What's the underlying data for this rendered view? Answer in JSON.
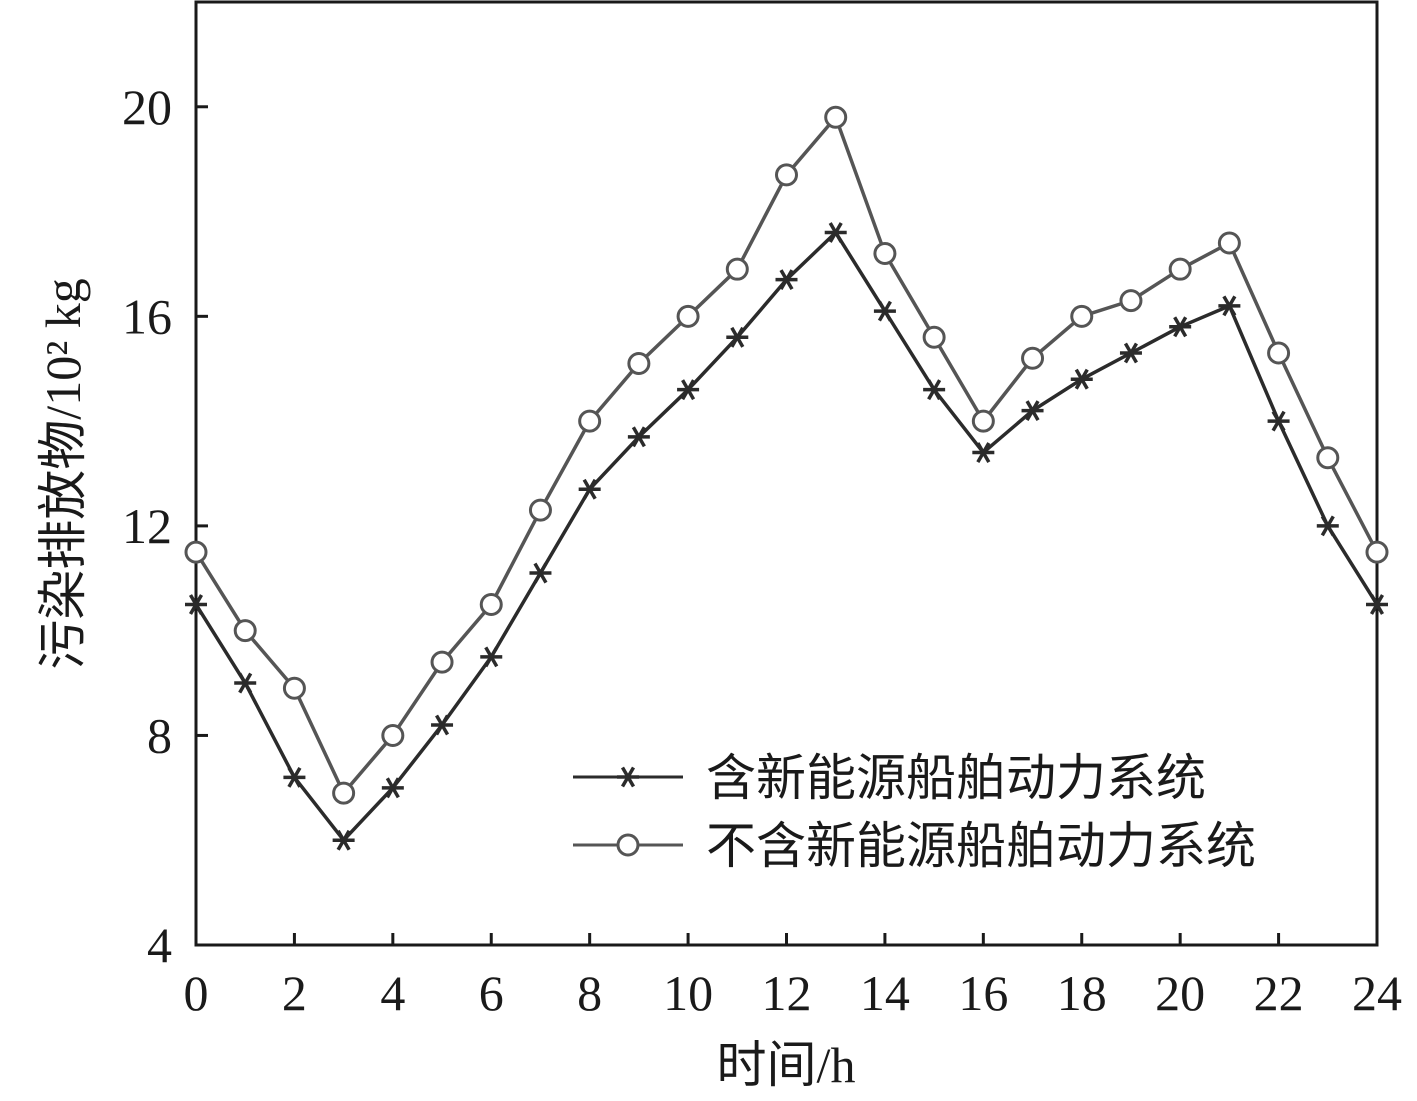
{
  "chart_data": {
    "type": "line",
    "xlabel": "时间/h",
    "ylabel": "污染排放物/10² kg",
    "xlim": [
      0,
      24
    ],
    "ylim": [
      4,
      22
    ],
    "xticks": [
      0,
      2,
      4,
      6,
      8,
      10,
      12,
      14,
      16,
      18,
      20,
      22,
      24
    ],
    "yticks": [
      4,
      8,
      12,
      16,
      20
    ],
    "grid": false,
    "legend_position": "bottom-right",
    "x": [
      0,
      1,
      2,
      3,
      4,
      5,
      6,
      7,
      8,
      9,
      10,
      11,
      12,
      13,
      14,
      15,
      16,
      17,
      18,
      19,
      20,
      21,
      22,
      23,
      24
    ],
    "series": [
      {
        "name": "含新能源船舶动力系统",
        "marker": "asterisk",
        "color": "#2b2b2b",
        "values": [
          10.5,
          9.0,
          7.2,
          6.0,
          7.0,
          8.2,
          9.5,
          11.1,
          12.7,
          13.7,
          14.6,
          15.6,
          16.7,
          17.6,
          16.1,
          14.6,
          13.4,
          14.2,
          14.8,
          15.3,
          15.8,
          16.2,
          14.0,
          12.0,
          10.5
        ]
      },
      {
        "name": "不含新能源船舶动力系统",
        "marker": "circle",
        "color": "#555555",
        "values": [
          11.5,
          10.0,
          8.9,
          6.9,
          8.0,
          9.4,
          10.5,
          12.3,
          14.0,
          15.1,
          16.0,
          16.9,
          18.7,
          19.8,
          17.2,
          15.6,
          14.0,
          15.2,
          16.0,
          16.3,
          16.9,
          17.4,
          15.3,
          13.3,
          11.5
        ]
      }
    ]
  }
}
